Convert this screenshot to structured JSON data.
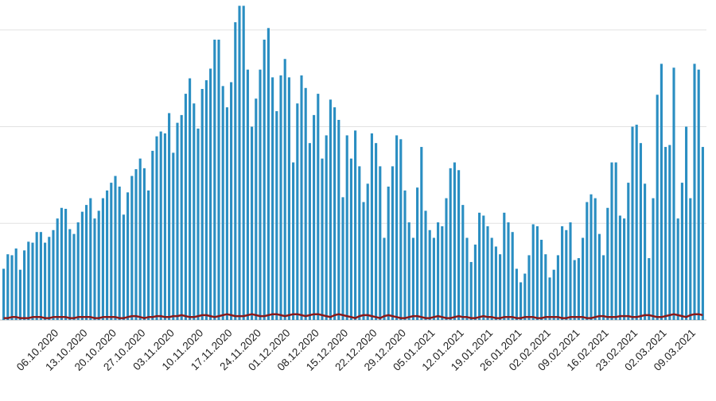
{
  "chart_data": {
    "type": "bar",
    "categories": [
      null,
      null,
      null,
      null,
      null,
      null,
      null,
      null,
      "06.10.2020",
      null,
      null,
      null,
      null,
      null,
      null,
      "13.10.2020",
      null,
      null,
      null,
      null,
      null,
      null,
      "20.10.2020",
      null,
      null,
      null,
      null,
      null,
      null,
      "27.10.2020",
      null,
      null,
      null,
      null,
      null,
      null,
      "03.11.2020",
      null,
      null,
      null,
      null,
      null,
      null,
      "10.11.2020",
      null,
      null,
      null,
      null,
      null,
      null,
      "17.11.2020",
      null,
      null,
      null,
      null,
      null,
      null,
      "24.11.2020",
      null,
      null,
      null,
      null,
      null,
      null,
      "01.12.2020",
      null,
      null,
      null,
      null,
      null,
      null,
      "08.12.2020",
      null,
      null,
      null,
      null,
      null,
      null,
      "15.12.2020",
      null,
      null,
      null,
      null,
      null,
      null,
      "22.12.2020",
      null,
      null,
      null,
      null,
      null,
      null,
      "29.12.2020",
      null,
      null,
      null,
      null,
      null,
      null,
      "05.01.2021",
      null,
      null,
      null,
      null,
      null,
      null,
      "12.01.2021",
      null,
      null,
      null,
      null,
      null,
      null,
      "19.01.2021",
      null,
      null,
      null,
      null,
      null,
      null,
      "26.01.2021",
      null,
      null,
      null,
      null,
      null,
      null,
      "02.02.2021",
      null,
      null,
      null,
      null,
      null,
      null,
      "09.02.2021",
      null,
      null,
      null,
      null,
      null,
      null,
      "16.02.2021",
      null,
      null,
      null,
      null,
      null,
      null,
      "23.02.2021",
      null,
      null,
      null,
      null,
      null,
      null,
      "02.03.2021",
      null,
      null,
      null,
      null,
      null,
      null,
      "09.03.2021",
      null,
      null,
      null,
      null,
      null,
      null,
      null
    ],
    "series": [
      {
        "type": "bar",
        "color": "#2a8ec2",
        "values": [
          0.53,
          0.68,
          0.67,
          0.74,
          0.52,
          0.72,
          0.81,
          0.8,
          0.91,
          0.91,
          0.8,
          0.86,
          0.93,
          1.05,
          1.16,
          1.15,
          0.94,
          0.89,
          1.01,
          1.12,
          1.19,
          1.26,
          1.05,
          1.13,
          1.26,
          1.34,
          1.42,
          1.49,
          1.38,
          1.09,
          1.32,
          1.49,
          1.56,
          1.67,
          1.57,
          1.34,
          1.75,
          1.9,
          1.95,
          1.93,
          2.14,
          1.73,
          2.04,
          2.12,
          2.34,
          2.5,
          2.24,
          1.98,
          2.39,
          2.48,
          2.6,
          2.9,
          2.9,
          2.42,
          2.2,
          2.46,
          3.08,
          3.25,
          3.25,
          2.59,
          2.0,
          2.29,
          2.59,
          2.9,
          3.02,
          2.51,
          2.16,
          2.53,
          2.7,
          2.51,
          1.63,
          2.24,
          2.53,
          2.4,
          1.83,
          2.12,
          2.34,
          1.67,
          1.91,
          2.28,
          2.2,
          2.07,
          1.27,
          1.91,
          1.67,
          1.96,
          1.59,
          1.22,
          1.41,
          1.93,
          1.83,
          1.59,
          0.85,
          1.38,
          1.59,
          1.91,
          1.87,
          1.34,
          1.01,
          0.85,
          1.37,
          1.79,
          1.13,
          0.93,
          0.85,
          1.01,
          0.97,
          1.26,
          1.57,
          1.63,
          1.55,
          1.19,
          0.85,
          0.6,
          0.78,
          1.11,
          1.08,
          0.97,
          0.85,
          0.76,
          0.68,
          1.11,
          1.01,
          0.91,
          0.53,
          0.39,
          0.48,
          0.67,
          0.99,
          0.97,
          0.83,
          0.68,
          0.44,
          0.52,
          0.67,
          0.97,
          0.93,
          1.01,
          0.62,
          0.64,
          0.85,
          1.22,
          1.3,
          1.26,
          0.89,
          0.67,
          1.16,
          1.63,
          1.63,
          1.08,
          1.05,
          1.42,
          2.0,
          2.02,
          1.83,
          1.41,
          0.64,
          1.26,
          2.33,
          2.65,
          1.79,
          1.81,
          2.61,
          1.05,
          1.42,
          2.0,
          1.26,
          2.65,
          2.59,
          1.79
        ]
      },
      {
        "type": "line",
        "color": "#8b1a1a",
        "values": [
          0.02,
          0.02,
          0.03,
          0.03,
          0.02,
          0.02,
          0.02,
          0.03,
          0.03,
          0.03,
          0.02,
          0.02,
          0.03,
          0.03,
          0.03,
          0.03,
          0.02,
          0.02,
          0.03,
          0.03,
          0.03,
          0.03,
          0.02,
          0.02,
          0.03,
          0.03,
          0.03,
          0.03,
          0.02,
          0.02,
          0.03,
          0.04,
          0.04,
          0.03,
          0.02,
          0.03,
          0.03,
          0.04,
          0.04,
          0.03,
          0.03,
          0.04,
          0.04,
          0.05,
          0.04,
          0.03,
          0.03,
          0.04,
          0.05,
          0.05,
          0.04,
          0.03,
          0.04,
          0.05,
          0.06,
          0.05,
          0.04,
          0.04,
          0.04,
          0.05,
          0.06,
          0.05,
          0.04,
          0.04,
          0.05,
          0.06,
          0.06,
          0.05,
          0.04,
          0.05,
          0.06,
          0.06,
          0.05,
          0.04,
          0.05,
          0.06,
          0.06,
          0.05,
          0.04,
          0.03,
          0.05,
          0.06,
          0.05,
          0.04,
          0.03,
          0.02,
          0.04,
          0.05,
          0.05,
          0.04,
          0.03,
          0.02,
          0.04,
          0.05,
          0.04,
          0.03,
          0.02,
          0.02,
          0.03,
          0.04,
          0.04,
          0.03,
          0.02,
          0.02,
          0.03,
          0.04,
          0.03,
          0.02,
          0.02,
          0.03,
          0.04,
          0.03,
          0.03,
          0.02,
          0.02,
          0.03,
          0.04,
          0.03,
          0.03,
          0.02,
          0.02,
          0.03,
          0.03,
          0.03,
          0.02,
          0.02,
          0.03,
          0.03,
          0.03,
          0.02,
          0.02,
          0.03,
          0.03,
          0.03,
          0.03,
          0.02,
          0.02,
          0.03,
          0.03,
          0.03,
          0.03,
          0.02,
          0.02,
          0.03,
          0.04,
          0.04,
          0.03,
          0.03,
          0.03,
          0.04,
          0.04,
          0.04,
          0.03,
          0.03,
          0.04,
          0.05,
          0.05,
          0.04,
          0.03,
          0.03,
          0.04,
          0.05,
          0.06,
          0.05,
          0.04,
          0.03,
          0.05,
          0.06,
          0.06,
          0.05
        ]
      }
    ],
    "ylim": [
      0,
      3.31
    ],
    "yticks": [
      0,
      1,
      2,
      3
    ],
    "grid": true
  }
}
